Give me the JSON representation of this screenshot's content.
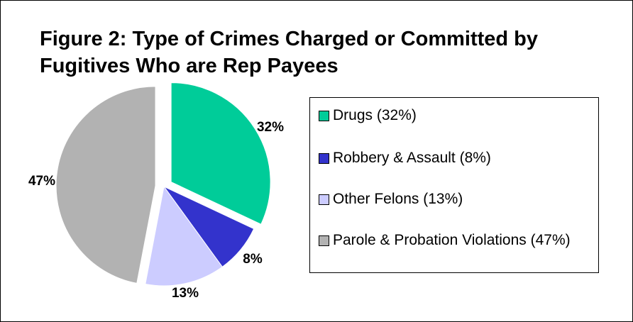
{
  "title_line1": "Figure 2:  Type of Crimes Charged or Committed by",
  "title_line2": "Fugitives Who are Rep Payees",
  "chart_data": {
    "type": "pie",
    "title": "Figure 2:  Type of Crimes Charged or Committed by Fugitives Who are Rep Payees",
    "slices": [
      {
        "name": "Drugs (32%)",
        "value": 32,
        "label": "32%",
        "color": "#00CC99",
        "exploded": true
      },
      {
        "name": "Robbery & Assault (8%)",
        "value": 8,
        "label": "8%",
        "color": "#3333CC",
        "exploded": false
      },
      {
        "name": "Other Felons (13%)",
        "value": 13,
        "label": "13%",
        "color": "#CCCCFF",
        "exploded": false
      },
      {
        "name": "Parole & Probation Violations (47%)",
        "value": 47,
        "label": "47%",
        "color": "#B2B2B2",
        "exploded": true
      }
    ],
    "legend_placement": "right",
    "start": "top",
    "direction": "clockwise"
  }
}
